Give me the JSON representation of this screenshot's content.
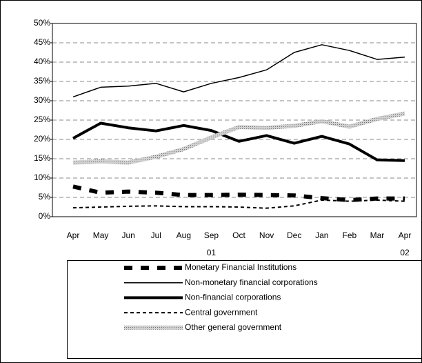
{
  "chart_data": {
    "type": "line",
    "categories": [
      "Apr",
      "May",
      "Jun",
      "Jul",
      "Aug",
      "Sep",
      "Oct",
      "Nov",
      "Dec",
      "Jan",
      "Feb",
      "Mar",
      "Apr"
    ],
    "category_sublabels": [
      null,
      null,
      null,
      null,
      null,
      "01",
      null,
      null,
      null,
      null,
      null,
      null,
      "02"
    ],
    "ylim": [
      0,
      50
    ],
    "yticks": [
      {
        "value": 0,
        "label": "0%"
      },
      {
        "value": 5,
        "label": "5%"
      },
      {
        "value": 10,
        "label": "10%"
      },
      {
        "value": 15,
        "label": "15%"
      },
      {
        "value": 20,
        "label": "20%"
      },
      {
        "value": 25,
        "label": "25%"
      },
      {
        "value": 30,
        "label": "30%"
      },
      {
        "value": 35,
        "label": "35%"
      },
      {
        "value": 40,
        "label": "40%"
      },
      {
        "value": 45,
        "label": "45%"
      },
      {
        "value": 50,
        "label": "50%"
      }
    ],
    "grid": true,
    "series": [
      {
        "name": "Monetary Financial Institutions",
        "color": "#000000",
        "style": "thick-dashed",
        "values": [
          7.8,
          6.2,
          6.5,
          6.2,
          5.6,
          5.6,
          5.7,
          5.6,
          5.5,
          4.8,
          4.3,
          4.7,
          4.7
        ]
      },
      {
        "name": "Non-monetary financial corporations",
        "color": "#000000",
        "style": "thin-solid",
        "values": [
          31,
          33.5,
          33.8,
          34.5,
          32.3,
          34.5,
          36,
          38,
          42.5,
          44.5,
          43,
          40.7,
          41.3
        ]
      },
      {
        "name": "Non-financial corporations",
        "color": "#000000",
        "style": "thick-solid",
        "values": [
          20.3,
          24.2,
          23,
          22.2,
          23.6,
          22.3,
          19.5,
          21,
          19,
          20.8,
          18.8,
          14.7,
          14.5
        ]
      },
      {
        "name": "Central government",
        "color": "#000000",
        "style": "dotted",
        "values": [
          2.3,
          2.5,
          2.7,
          2.8,
          2.6,
          2.6,
          2.5,
          2.2,
          2.8,
          4.3,
          4,
          4.3,
          4
        ]
      },
      {
        "name": "Other general government",
        "color": "#b8b8b8",
        "style": "textured",
        "values": [
          14,
          14.3,
          14,
          15.5,
          17.5,
          20.5,
          23.2,
          23,
          23.5,
          24.7,
          23.3,
          25.3,
          26.7
        ]
      }
    ]
  }
}
